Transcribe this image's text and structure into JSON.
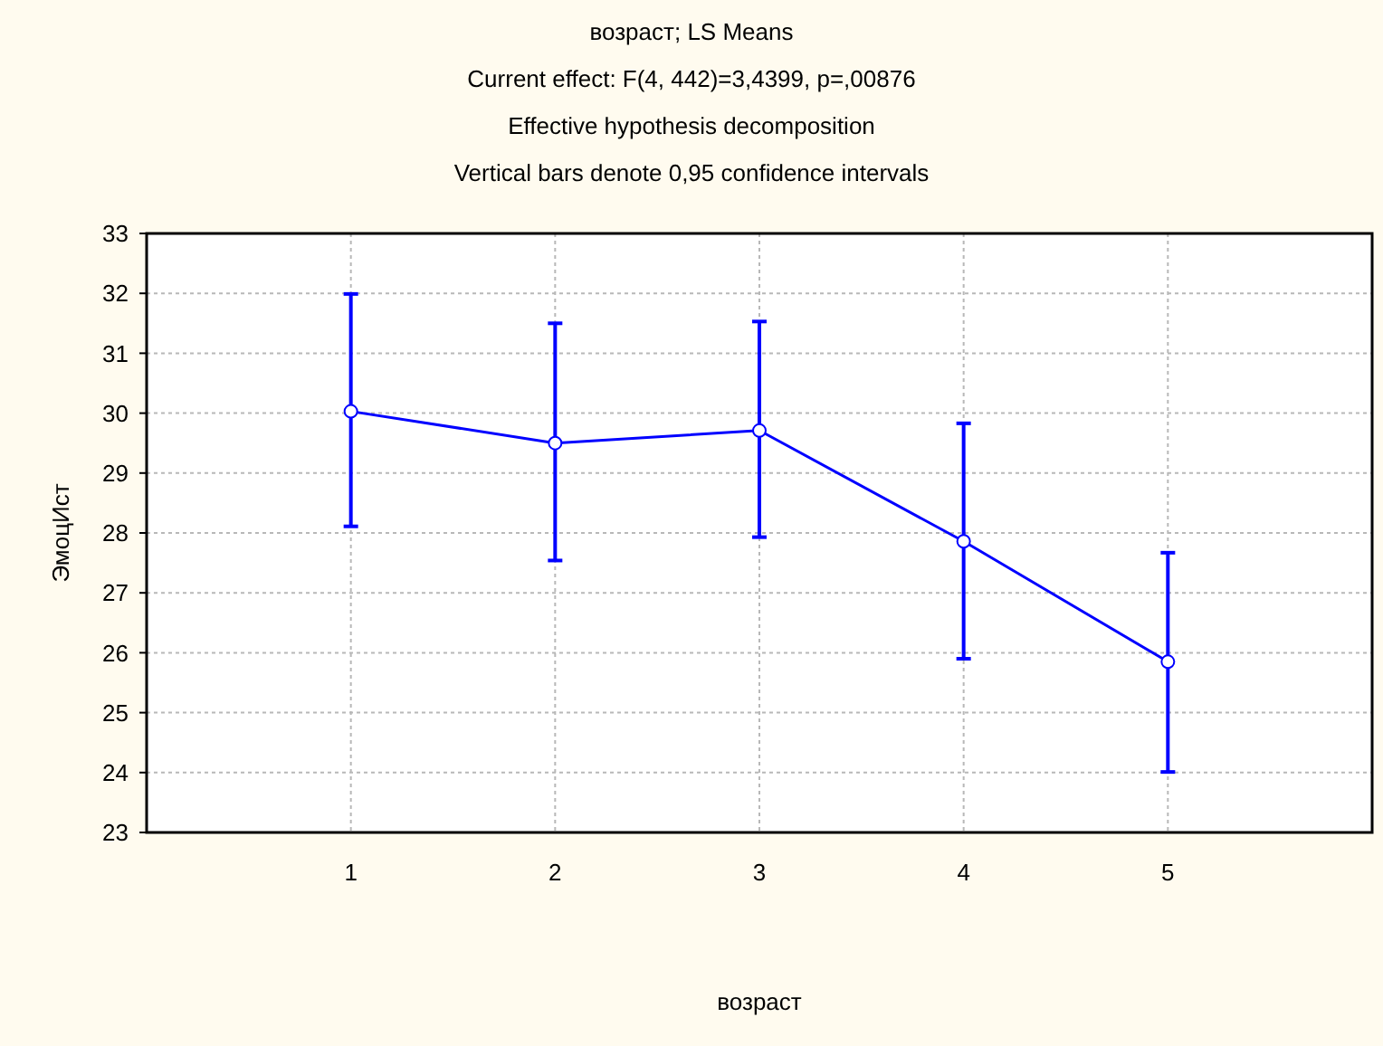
{
  "chart_data": {
    "type": "line",
    "title": "возраст; LS Means",
    "subtitle": "Current effect: F(4, 442)=3,4399, p=,00876",
    "annotations": [
      "Effective hypothesis decomposition",
      "Vertical bars denote 0,95 confidence intervals"
    ],
    "xlabel": "возраст",
    "ylabel": "ЭмоцИст",
    "x": [
      1,
      2,
      3,
      4,
      5
    ],
    "series": [
      {
        "color": "#0000ff",
        "values": [
          30.03,
          29.5,
          29.71,
          27.86,
          25.85
        ],
        "errors": [
          [
            28.11,
            31.99
          ],
          [
            27.54,
            31.5
          ],
          [
            27.93,
            31.53
          ],
          [
            25.9,
            29.83
          ],
          [
            24.01,
            27.67
          ]
        ]
      }
    ],
    "xlim": [
      0,
      6
    ],
    "xticks": [
      1,
      2,
      3,
      4,
      5
    ],
    "ylim": [
      23,
      33
    ],
    "yticks": [
      23,
      24,
      25,
      26,
      27,
      28,
      29,
      30,
      31,
      32,
      33
    ],
    "grid": true,
    "marker": "circle",
    "line_style": "solid"
  }
}
